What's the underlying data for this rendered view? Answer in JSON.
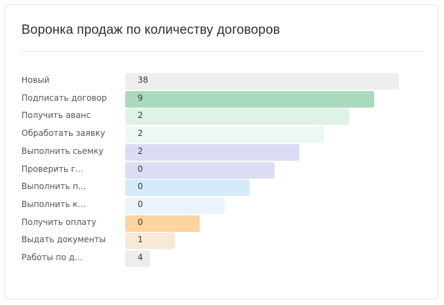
{
  "title": "Воронка продаж по количеству договоров",
  "colors": {
    "new": "#eeeeee",
    "sign": "#a9d9bf",
    "advance": "#dff2e8",
    "process": "#eef8f2",
    "shoot": "#dcdcf3",
    "check": "#dcdcf3",
    "perform1": "#d5ebf9",
    "perform2": "#eaf4fc",
    "payment": "#fdd49f",
    "documents": "#f7e9d6",
    "works": "#ededed"
  },
  "chart_data": {
    "type": "bar",
    "orientation": "horizontal-funnel",
    "title": "Воронка продаж по количеству договоров",
    "categories": [
      "Новый",
      "Подписать договор",
      "Получить аванс",
      "Обработать заявку",
      "Выполнить сьемку",
      "Проверить г...",
      "Выполнить п...",
      "Выполнить к...",
      "Получить оплату",
      "Выдать документы",
      "Работы по д..."
    ],
    "values": [
      38,
      9,
      2,
      2,
      2,
      0,
      0,
      0,
      0,
      1,
      4
    ]
  }
}
